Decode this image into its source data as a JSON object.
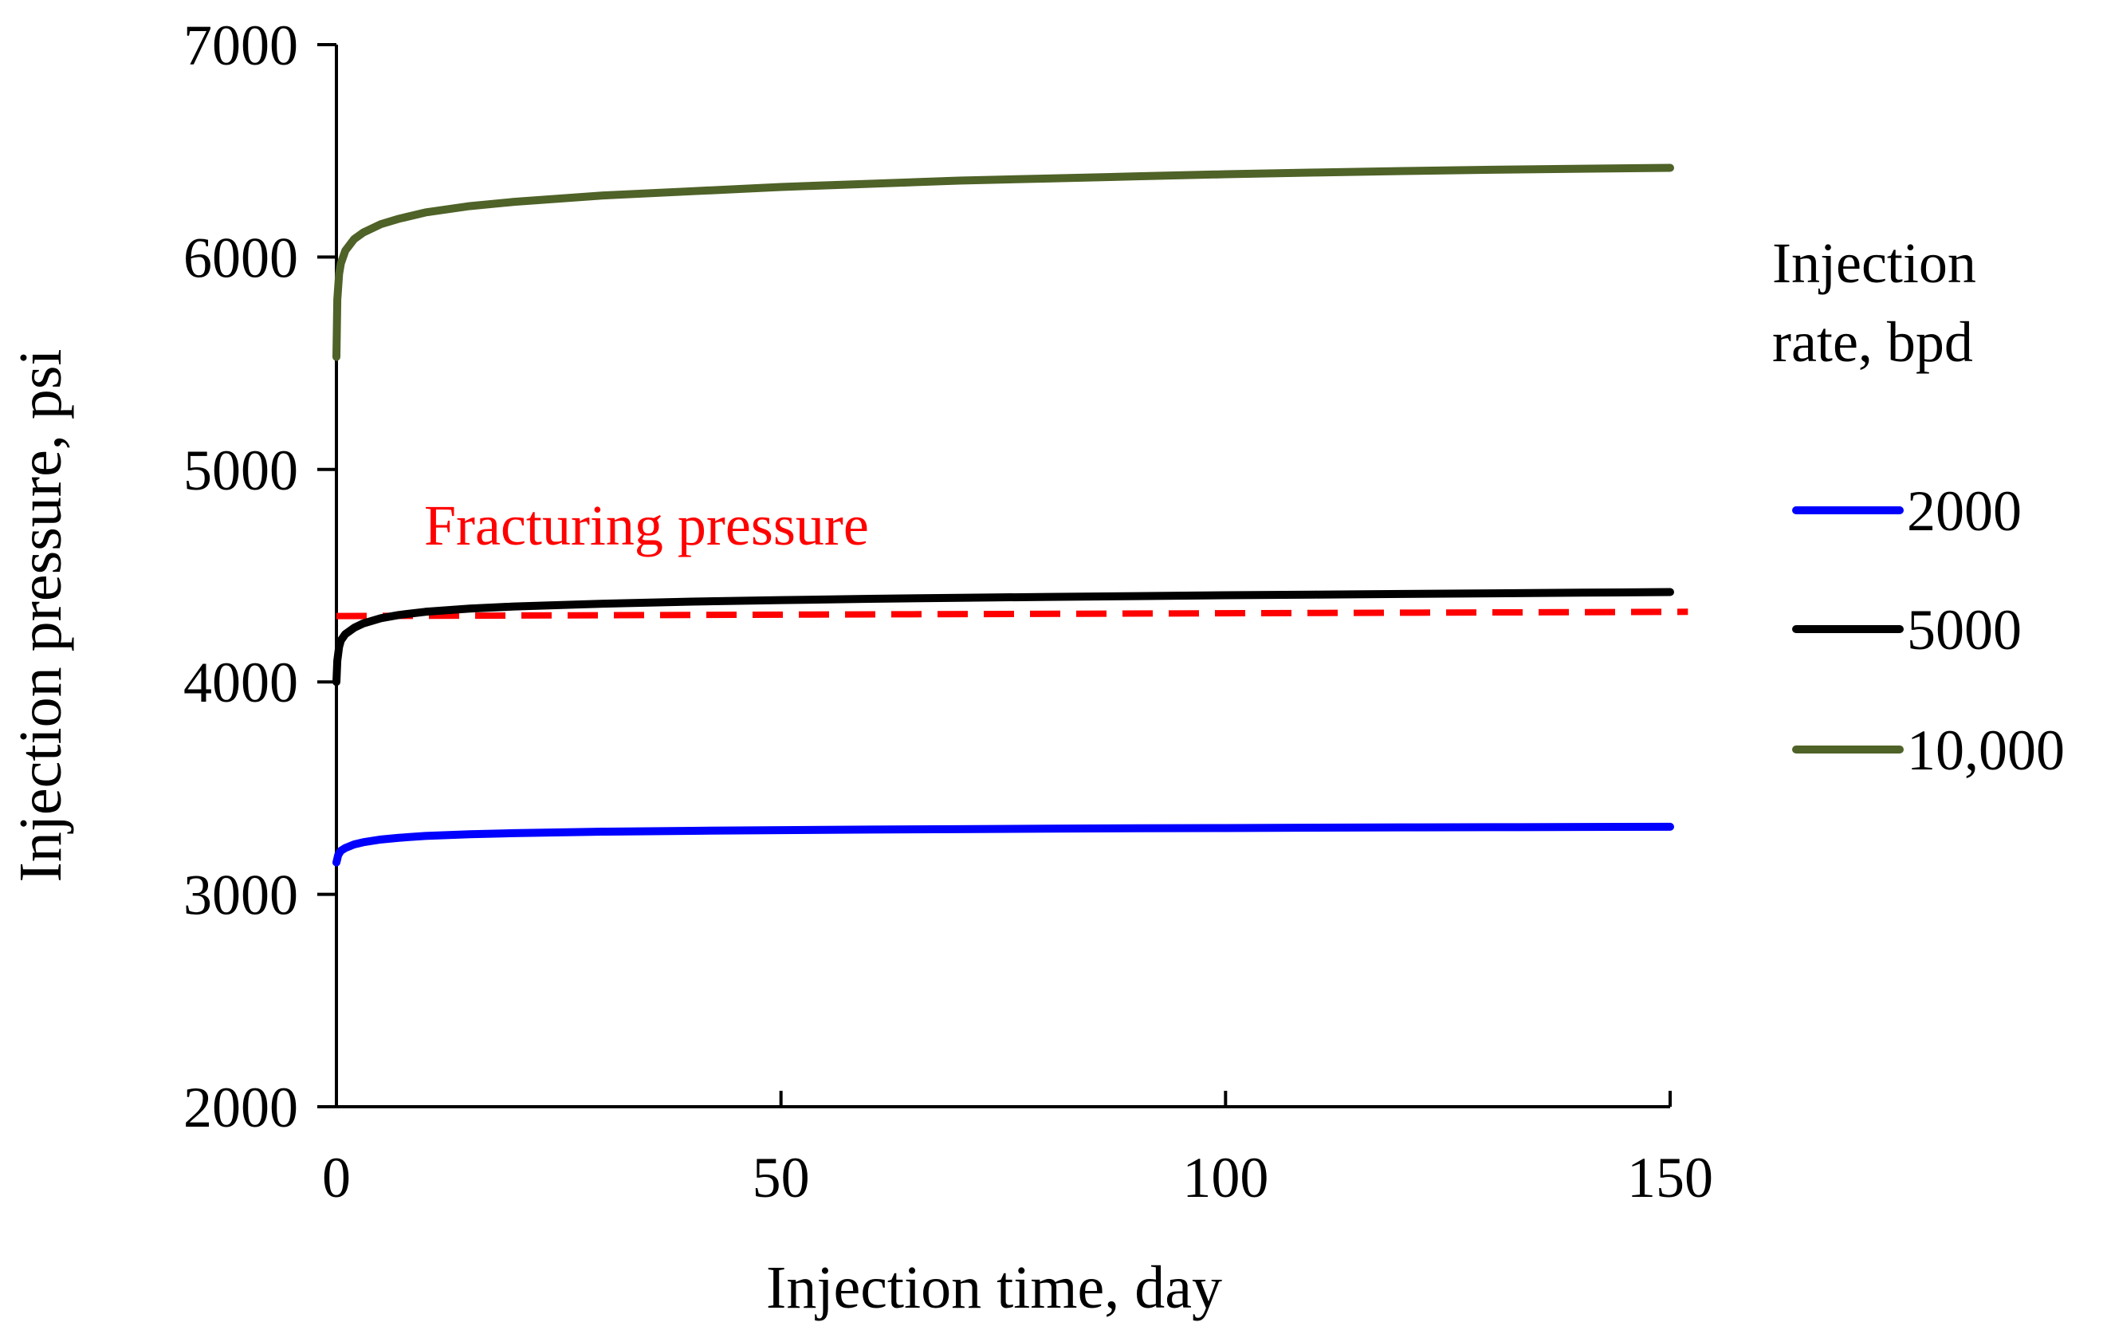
{
  "chart_data": {
    "type": "line",
    "title": "",
    "xlabel": "Injection time, day",
    "ylabel": "Injection pressure, psi",
    "xlim": [
      0,
      150
    ],
    "ylim": [
      2000,
      7000
    ],
    "xticks": [
      0,
      50,
      100,
      150
    ],
    "xtick_labels": [
      "0",
      "50",
      "100",
      "150"
    ],
    "yticks": [
      2000,
      3000,
      4000,
      5000,
      6000,
      7000
    ],
    "ytick_labels": [
      "2000",
      "3000",
      "4000",
      "5000",
      "6000",
      "7000"
    ],
    "grid": false,
    "legend": {
      "title_lines": [
        "Injection",
        "rate, bpd"
      ],
      "placement": "right"
    },
    "series": [
      {
        "name": "2000",
        "color": "#0000ff",
        "x": [
          0,
          0.2,
          0.5,
          1,
          2,
          3,
          5,
          7,
          10,
          15,
          20,
          30,
          40,
          50,
          60,
          70,
          80,
          90,
          100,
          110,
          120,
          130,
          140,
          150
        ],
        "y": [
          3150,
          3185,
          3205,
          3218,
          3235,
          3245,
          3258,
          3266,
          3275,
          3283,
          3288,
          3295,
          3299,
          3302,
          3305,
          3307,
          3309,
          3311,
          3312,
          3314,
          3315,
          3316,
          3317,
          3318
        ]
      },
      {
        "name": "5000",
        "color": "#000000",
        "x": [
          0,
          0.1,
          0.3,
          0.5,
          1,
          2,
          3,
          5,
          7,
          10,
          15,
          20,
          30,
          40,
          50,
          60,
          70,
          80,
          90,
          100,
          110,
          120,
          130,
          140,
          150
        ],
        "y": [
          4000,
          4100,
          4165,
          4195,
          4225,
          4255,
          4275,
          4300,
          4315,
          4330,
          4345,
          4355,
          4368,
          4378,
          4385,
          4391,
          4396,
          4400,
          4404,
          4408,
          4411,
          4414,
          4417,
          4420,
          4423
        ]
      },
      {
        "name": "10,000",
        "color": "#4f6228",
        "x": [
          0,
          0.1,
          0.3,
          0.5,
          1,
          2,
          3,
          5,
          7,
          10,
          15,
          20,
          30,
          40,
          50,
          60,
          70,
          80,
          90,
          100,
          110,
          120,
          130,
          140,
          150
        ],
        "y": [
          5530,
          5800,
          5920,
          5970,
          6030,
          6085,
          6115,
          6155,
          6180,
          6210,
          6240,
          6260,
          6290,
          6310,
          6330,
          6345,
          6360,
          6370,
          6380,
          6390,
          6398,
          6405,
          6411,
          6416,
          6420
        ]
      }
    ],
    "reference_lines": [
      {
        "label": "Fracturing pressure",
        "color": "#ff0000",
        "style": "dashed",
        "x": [
          0,
          152
        ],
        "y": [
          4310,
          4330
        ]
      }
    ]
  }
}
